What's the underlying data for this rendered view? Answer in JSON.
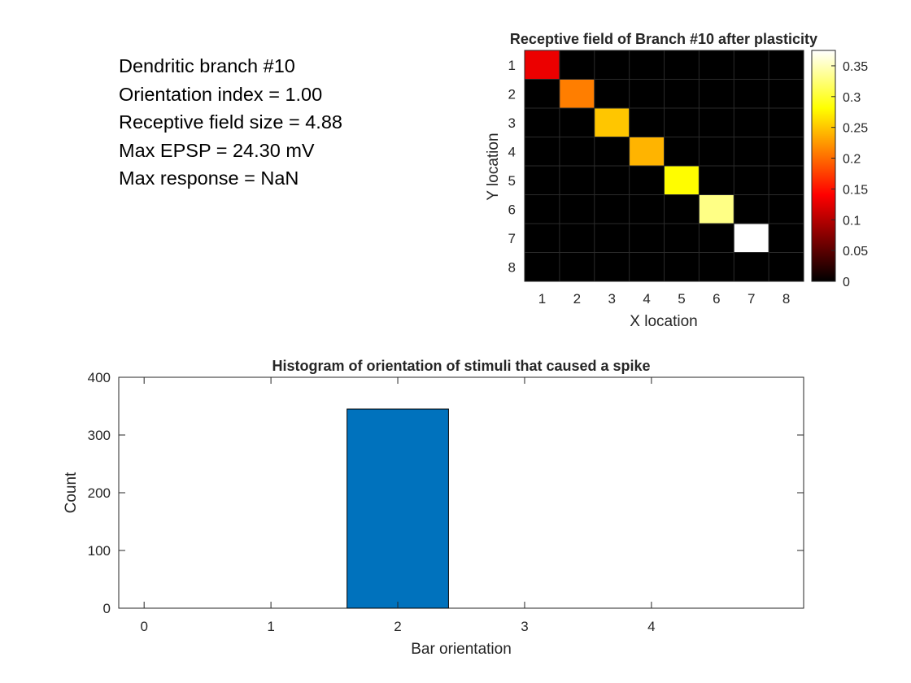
{
  "info": {
    "lines": [
      "Dendritic branch #10",
      "Orientation index = 1.00",
      "Receptive field size = 4.88",
      "Max EPSP = 24.30 mV",
      "Max response = NaN"
    ]
  },
  "chart_data": [
    {
      "type": "heatmap",
      "title": "Receptive field of Branch #10 after plasticity",
      "xlabel": "X location",
      "ylabel": "Y location",
      "x_ticks": [
        "1",
        "2",
        "3",
        "4",
        "5",
        "6",
        "7",
        "8"
      ],
      "y_ticks": [
        "1",
        "2",
        "3",
        "4",
        "5",
        "6",
        "7",
        "8"
      ],
      "colormap": "hot",
      "clim": [
        0,
        0.375
      ],
      "colorbar_ticks": [
        0,
        0.05,
        0.1,
        0.15,
        0.2,
        0.25,
        0.3,
        0.35
      ],
      "colorbar_tick_labels": [
        "0",
        "0.05",
        "0.1",
        "0.15",
        "0.2",
        "0.25",
        "0.3",
        "0.35"
      ],
      "values": [
        [
          0.13,
          0,
          0,
          0,
          0,
          0,
          0,
          0
        ],
        [
          0,
          0.21,
          0,
          0,
          0,
          0,
          0,
          0
        ],
        [
          0,
          0,
          0.25,
          0,
          0,
          0,
          0,
          0
        ],
        [
          0,
          0,
          0,
          0.24,
          0,
          0,
          0,
          0
        ],
        [
          0,
          0,
          0,
          0,
          0.28,
          0,
          0,
          0
        ],
        [
          0,
          0,
          0,
          0,
          0,
          0.33,
          0,
          0
        ],
        [
          0,
          0,
          0,
          0,
          0,
          0,
          0.375,
          0
        ],
        [
          0,
          0,
          0,
          0,
          0,
          0,
          0,
          0
        ]
      ]
    },
    {
      "type": "bar",
      "title": "Histogram of orientation of stimuli that caused a spike",
      "xlabel": "Bar orientation",
      "ylabel": "Count",
      "x": [
        0,
        1,
        2,
        3,
        4
      ],
      "x_tick_labels": [
        "0",
        "1",
        "2",
        "3",
        "4"
      ],
      "values": [
        0,
        0,
        345,
        0,
        0
      ],
      "bar_width": 0.8,
      "xlim": [
        -0.2,
        5.2
      ],
      "ylim": [
        0,
        400
      ],
      "y_ticks": [
        0,
        100,
        200,
        300,
        400
      ],
      "y_tick_labels": [
        "0",
        "100",
        "200",
        "300",
        "400"
      ],
      "bar_color": "#0072BD"
    }
  ]
}
